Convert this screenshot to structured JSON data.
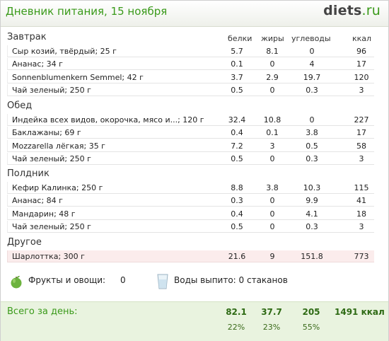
{
  "header": {
    "title": "Дневник питания, 15 ноября",
    "logo_main": "diets",
    "logo_suffix": ".ru"
  },
  "columns": {
    "protein": "белки",
    "fat": "жиры",
    "carbs": "углеводы",
    "kcal": "ккал"
  },
  "sections": [
    {
      "name": "Завтрак",
      "rows": [
        {
          "food": "Сыр козий, твёрдый; 25 г",
          "protein": "5.7",
          "fat": "8.1",
          "carbs": "0",
          "kcal": "96"
        },
        {
          "food": "Ананас; 34 г",
          "protein": "0.1",
          "fat": "0",
          "carbs": "4",
          "kcal": "17"
        },
        {
          "food": "Sonnenblumenkern Semmel; 42 г",
          "protein": "3.7",
          "fat": "2.9",
          "carbs": "19.7",
          "kcal": "120"
        },
        {
          "food": "Чай зеленый; 250 г",
          "protein": "0.5",
          "fat": "0",
          "carbs": "0.3",
          "kcal": "3"
        }
      ]
    },
    {
      "name": "Обед",
      "rows": [
        {
          "food": "Индейка всех видов, окорочка, мясо и...; 120 г",
          "protein": "32.4",
          "fat": "10.8",
          "carbs": "0",
          "kcal": "227"
        },
        {
          "food": "Баклажаны; 69 г",
          "protein": "0.4",
          "fat": "0.1",
          "carbs": "3.8",
          "kcal": "17"
        },
        {
          "food": "Mozzarella лёгкая; 35 г",
          "protein": "7.2",
          "fat": "3",
          "carbs": "0.5",
          "kcal": "58"
        },
        {
          "food": "Чай зеленый; 250 г",
          "protein": "0.5",
          "fat": "0",
          "carbs": "0.3",
          "kcal": "3"
        }
      ]
    },
    {
      "name": "Полдник",
      "rows": [
        {
          "food": "Кефир Калинка; 250 г",
          "protein": "8.8",
          "fat": "3.8",
          "carbs": "10.3",
          "kcal": "115"
        },
        {
          "food": "Ананас; 84 г",
          "protein": "0.3",
          "fat": "0",
          "carbs": "9.9",
          "kcal": "41"
        },
        {
          "food": "Мандарин; 48 г",
          "protein": "0.4",
          "fat": "0",
          "carbs": "4.1",
          "kcal": "18"
        },
        {
          "food": "Чай зеленый; 250 г",
          "protein": "0.5",
          "fat": "0",
          "carbs": "0.3",
          "kcal": "3"
        }
      ]
    },
    {
      "name": "Другое",
      "rows": [
        {
          "food": "Шарлоттка; 300 г",
          "protein": "21.6",
          "fat": "9",
          "carbs": "151.8",
          "kcal": "773",
          "highlight": true
        }
      ]
    }
  ],
  "misc": {
    "fruits_label": "Фрукты и овощи:",
    "fruits_value": "0",
    "water_label": "Воды выпито: 0 стаканов"
  },
  "footer": {
    "title": "Всего за день:",
    "protein": "82.1",
    "fat": "37.7",
    "carbs": "205",
    "kcal": "1491 ккал",
    "protein_pct": "22%",
    "fat_pct": "23%",
    "carbs_pct": "55%"
  },
  "colors": {
    "accent": "#3a9a1a",
    "highlight_row": "#fbecec",
    "footer_bg": "#e9f3df"
  },
  "icons": {
    "fruits": "apple-icon",
    "water": "glass-icon"
  }
}
